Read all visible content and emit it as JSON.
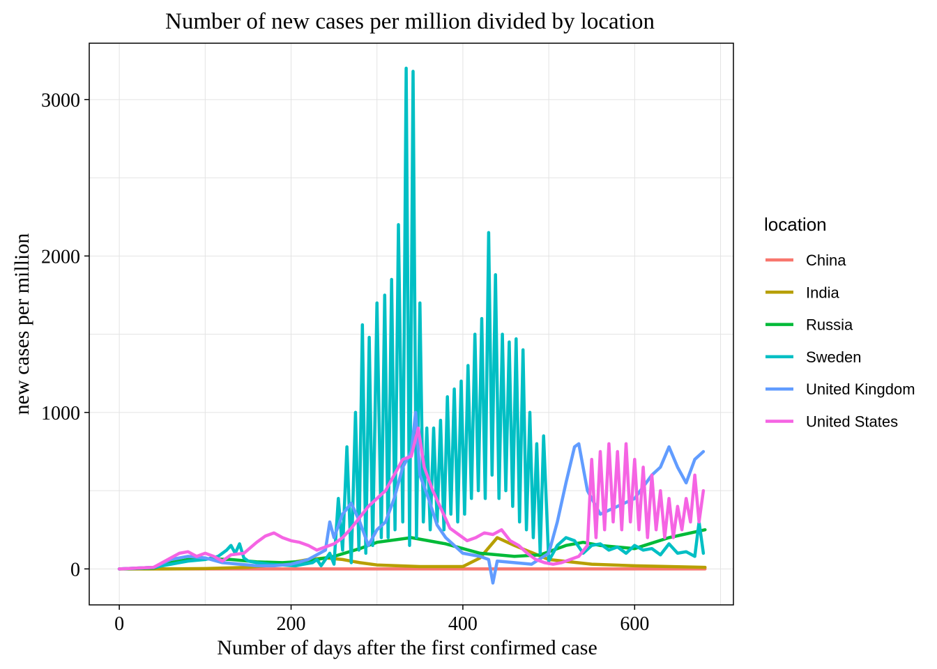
{
  "chart_data": {
    "type": "line",
    "title": "Number of new cases per million divided by location",
    "xlabel": "Number of days after the first confirmed case",
    "ylabel": "new cases per million",
    "xlim": [
      -35,
      715
    ],
    "ylim": [
      -230,
      3360
    ],
    "x_ticks": [
      0,
      200,
      400,
      600
    ],
    "y_ticks": [
      0,
      1000,
      2000,
      3000
    ],
    "grid": true,
    "legend_title": "location",
    "legend_position": "right",
    "series": [
      {
        "name": "China",
        "color": "#F8766D",
        "x": [
          0,
          100,
          200,
          300,
          400,
          500,
          600,
          682
        ],
        "y": [
          0,
          0,
          0,
          0,
          0,
          0,
          0,
          0
        ]
      },
      {
        "name": "India",
        "color": "#B79F00",
        "x": [
          0,
          50,
          100,
          150,
          180,
          200,
          220,
          240,
          260,
          280,
          300,
          350,
          400,
          420,
          440,
          460,
          500,
          550,
          600,
          682
        ],
        "y": [
          0,
          0,
          2,
          10,
          25,
          40,
          60,
          70,
          60,
          40,
          25,
          15,
          15,
          70,
          200,
          150,
          60,
          30,
          20,
          10
        ]
      },
      {
        "name": "Russia",
        "color": "#00BA38",
        "x": [
          0,
          40,
          60,
          80,
          100,
          130,
          160,
          190,
          220,
          250,
          280,
          300,
          340,
          380,
          420,
          460,
          490,
          520,
          540,
          560,
          600,
          640,
          682
        ],
        "y": [
          0,
          5,
          40,
          60,
          65,
          60,
          45,
          40,
          50,
          80,
          130,
          170,
          200,
          160,
          100,
          80,
          90,
          150,
          170,
          150,
          130,
          200,
          250
        ]
      },
      {
        "name": "Sweden",
        "color": "#00BFC4",
        "x": [
          0,
          40,
          60,
          80,
          100,
          115,
          125,
          130,
          135,
          140,
          145,
          150,
          160,
          175,
          190,
          205,
          215,
          225,
          230,
          235,
          245,
          250,
          255,
          260,
          265,
          270,
          275,
          279,
          283,
          287,
          291,
          295,
          300,
          305,
          309,
          313,
          317,
          321,
          325,
          330,
          334,
          338,
          342,
          346,
          350,
          354,
          358,
          362,
          366,
          370,
          374,
          378,
          382,
          386,
          390,
          394,
          398,
          402,
          406,
          410,
          414,
          418,
          422,
          426,
          430,
          434,
          438,
          442,
          446,
          450,
          454,
          458,
          462,
          466,
          470,
          474,
          478,
          482,
          486,
          490,
          494,
          500,
          510,
          520,
          530,
          540,
          550,
          560,
          570,
          580,
          590,
          600,
          610,
          620,
          630,
          640,
          650,
          660,
          670,
          675,
          680
        ],
        "y": [
          0,
          10,
          30,
          50,
          60,
          80,
          120,
          150,
          100,
          160,
          70,
          50,
          40,
          30,
          25,
          20,
          30,
          40,
          60,
          20,
          100,
          30,
          450,
          120,
          780,
          40,
          1000,
          120,
          1560,
          100,
          1480,
          150,
          1700,
          200,
          1750,
          200,
          1850,
          250,
          2200,
          300,
          3200,
          150,
          3180,
          200,
          1700,
          300,
          900,
          250,
          900,
          300,
          950,
          250,
          1100,
          350,
          1150,
          300,
          1200,
          350,
          1300,
          450,
          1500,
          500,
          1600,
          450,
          2150,
          600,
          1880,
          450,
          1500,
          500,
          1450,
          400,
          1470,
          300,
          1400,
          250,
          1000,
          200,
          800,
          100,
          850,
          50,
          150,
          200,
          180,
          100,
          150,
          160,
          120,
          140,
          100,
          150,
          120,
          130,
          90,
          160,
          100,
          110,
          80,
          300,
          100
        ]
      },
      {
        "name": "United Kingdom",
        "color": "#619CFF",
        "x": [
          0,
          40,
          60,
          80,
          100,
          120,
          140,
          160,
          180,
          200,
          220,
          240,
          245,
          250,
          260,
          270,
          280,
          290,
          300,
          310,
          320,
          330,
          340,
          345,
          350,
          360,
          370,
          380,
          400,
          420,
          430,
          435,
          440,
          460,
          480,
          500,
          510,
          520,
          530,
          535,
          545,
          560,
          580,
          600,
          620,
          630,
          640,
          650,
          660,
          670,
          680
        ],
        "y": [
          0,
          10,
          60,
          80,
          70,
          40,
          30,
          20,
          20,
          30,
          60,
          120,
          300,
          200,
          350,
          420,
          300,
          150,
          250,
          300,
          450,
          650,
          750,
          1000,
          600,
          450,
          280,
          200,
          100,
          80,
          60,
          -90,
          50,
          40,
          30,
          100,
          300,
          550,
          780,
          800,
          500,
          350,
          400,
          450,
          600,
          650,
          780,
          650,
          550,
          700,
          750
        ]
      },
      {
        "name": "United States",
        "color": "#F564E3",
        "x": [
          0,
          40,
          60,
          70,
          80,
          90,
          100,
          110,
          120,
          130,
          145,
          160,
          170,
          180,
          190,
          200,
          210,
          220,
          230,
          240,
          250,
          260,
          270,
          280,
          290,
          300,
          310,
          320,
          330,
          340,
          348,
          355,
          365,
          375,
          385,
          395,
          405,
          415,
          425,
          435,
          445,
          455,
          465,
          475,
          485,
          495,
          505,
          515,
          525,
          535,
          545,
          550,
          555,
          560,
          565,
          570,
          575,
          580,
          585,
          590,
          595,
          600,
          605,
          610,
          615,
          620,
          625,
          630,
          635,
          640,
          645,
          650,
          655,
          660,
          665,
          670,
          675,
          680
        ],
        "y": [
          0,
          10,
          70,
          100,
          110,
          80,
          100,
          80,
          50,
          90,
          100,
          170,
          210,
          230,
          200,
          180,
          170,
          150,
          120,
          140,
          160,
          200,
          260,
          330,
          400,
          450,
          500,
          600,
          700,
          720,
          900,
          650,
          500,
          380,
          260,
          220,
          180,
          200,
          230,
          220,
          250,
          180,
          150,
          100,
          60,
          40,
          30,
          40,
          60,
          80,
          150,
          700,
          200,
          750,
          250,
          800,
          300,
          750,
          250,
          800,
          300,
          700,
          250,
          650,
          200,
          600,
          250,
          500,
          200,
          450,
          200,
          400,
          250,
          450,
          300,
          600,
          300,
          500
        ]
      }
    ]
  }
}
